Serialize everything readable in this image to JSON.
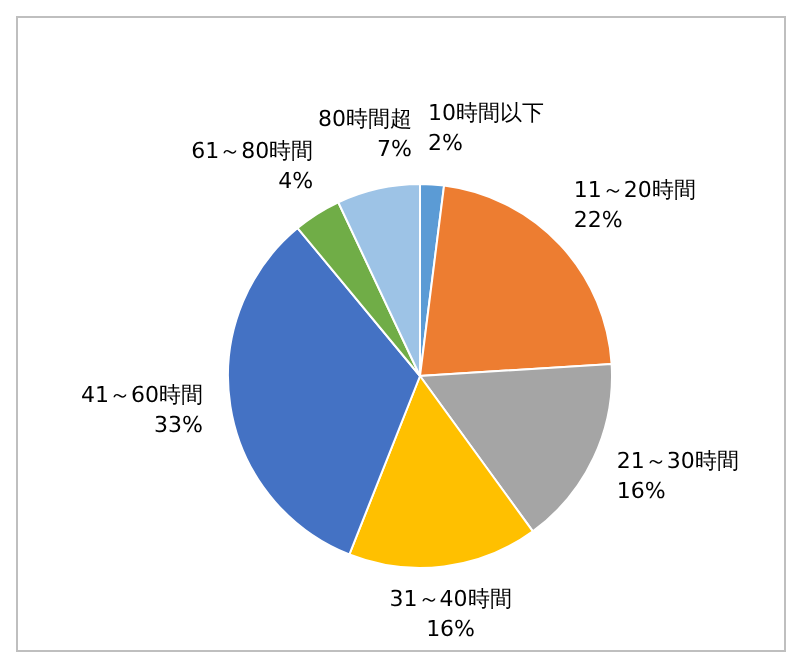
{
  "chart_data": {
    "type": "pie",
    "categories": [
      "10時間以下",
      "11～20時間",
      "21～30時間",
      "31～40時間",
      "41～60時間",
      "61～80時間",
      "80時間超"
    ],
    "values": [
      2,
      22,
      16,
      16,
      33,
      4,
      7
    ],
    "value_labels": [
      "2%",
      "22%",
      "16%",
      "16%",
      "33%",
      "4%",
      "7%"
    ],
    "colors": [
      "#5b9bd5",
      "#ed7d31",
      "#a5a5a5",
      "#ffc000",
      "#4472c4",
      "#70ad47",
      "#9dc3e6"
    ]
  }
}
